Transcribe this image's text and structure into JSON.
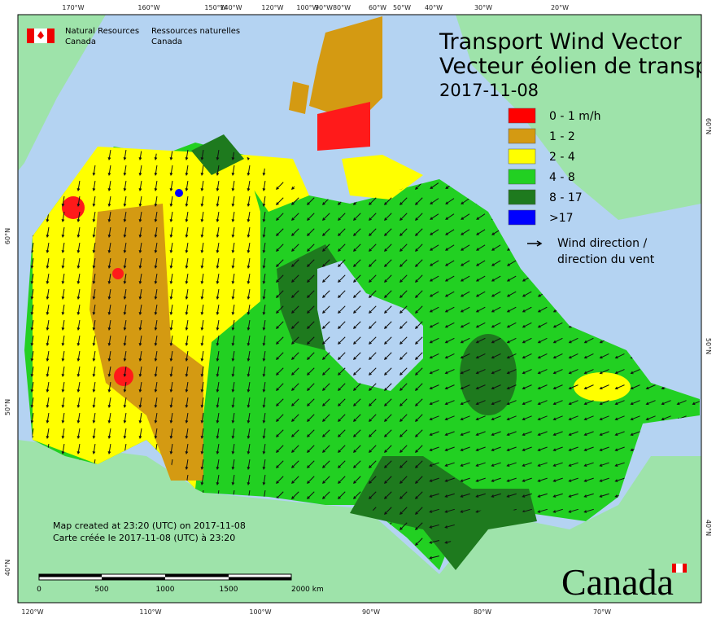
{
  "agency": {
    "en_line1": "Natural Resources",
    "en_line2": "Canada",
    "fr_line1": "Ressources naturelles",
    "fr_line2": "Canada"
  },
  "title": {
    "line1": "Transport Wind Vector",
    "line2": "Vecteur éolien de transp",
    "date": "2017-11-08"
  },
  "legend": {
    "items": [
      {
        "label": "0 - 1 m/h",
        "color": "#ff0000"
      },
      {
        "label": "1 - 2",
        "color": "#d49a12"
      },
      {
        "label": "2 - 4",
        "color": "#ffff00"
      },
      {
        "label": "4 - 8",
        "color": "#22d022"
      },
      {
        "label": "8 - 17",
        "color": "#1e7a1e"
      },
      {
        "label": ">17",
        "color": "#0000ff"
      }
    ],
    "arrow_line1": "Wind direction /",
    "arrow_line2": "direction du vent"
  },
  "axes": {
    "top": [
      "170°W",
      "160°W",
      "150°W",
      "140°W",
      "120°W",
      "100°W",
      "90°W",
      "80°W",
      "60°W",
      "50°W",
      "40°W",
      "30°W",
      "20°W"
    ],
    "bottom": [
      "120°W",
      "110°W",
      "100°W",
      "90°W",
      "80°W",
      "70°W"
    ],
    "left": [
      "60°N",
      "50°N",
      "40°N"
    ],
    "right": [
      "60°N",
      "50°N",
      "40°N"
    ]
  },
  "note": {
    "line1": "Map created at 23:20 (UTC) on 2017-11-08",
    "line2": "Carte créée le 2017-11-08 (UTC) à 23:20"
  },
  "scale": [
    "0",
    "500",
    "1000",
    "1500",
    "2000 km"
  ],
  "wordmark": "Canada"
}
